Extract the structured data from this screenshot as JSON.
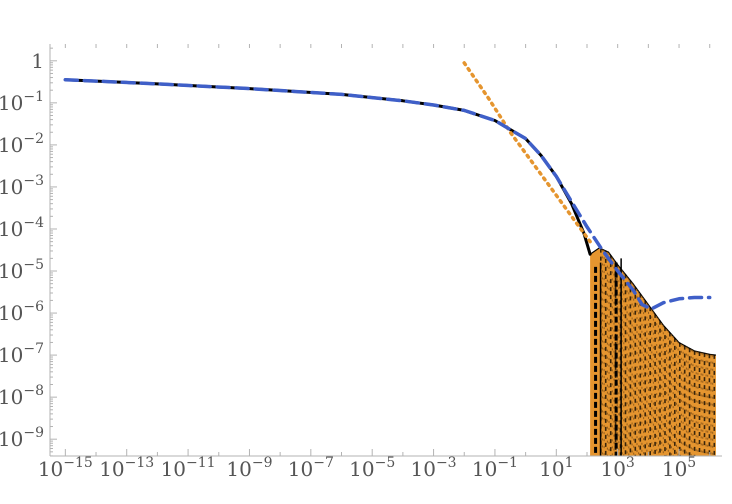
{
  "chart_data": {
    "type": "line",
    "title": "",
    "xlabel": "",
    "ylabel": "",
    "x_scale": "log",
    "y_scale": "log",
    "xlim_log10": [
      -15.5,
      6.4
    ],
    "ylim_log10": [
      -9.4,
      0.4
    ],
    "grid": false,
    "legend": "none",
    "x_ticks": [
      {
        "label": "10",
        "exp": "−15",
        "log10": -15
      },
      {
        "label": "10",
        "exp": "−13",
        "log10": -13
      },
      {
        "label": "10",
        "exp": "−11",
        "log10": -11
      },
      {
        "label": "10",
        "exp": "−9",
        "log10": -9
      },
      {
        "label": "10",
        "exp": "−7",
        "log10": -7
      },
      {
        "label": "10",
        "exp": "−5",
        "log10": -5
      },
      {
        "label": "10",
        "exp": "−3",
        "log10": -3
      },
      {
        "label": "10",
        "exp": "−1",
        "log10": -1
      },
      {
        "label": "10",
        "exp": "1",
        "log10": 1
      },
      {
        "label": "10",
        "exp": "3",
        "log10": 3
      },
      {
        "label": "10",
        "exp": "5",
        "log10": 5
      }
    ],
    "y_ticks": [
      {
        "label": "1",
        "exp": "",
        "log10": 0
      },
      {
        "label": "10",
        "exp": "−1",
        "log10": -1
      },
      {
        "label": "10",
        "exp": "−2",
        "log10": -2
      },
      {
        "label": "10",
        "exp": "−3",
        "log10": -3
      },
      {
        "label": "10",
        "exp": "−4",
        "log10": -4
      },
      {
        "label": "10",
        "exp": "−5",
        "log10": -5
      },
      {
        "label": "10",
        "exp": "−6",
        "log10": -6
      },
      {
        "label": "10",
        "exp": "−7",
        "log10": -7
      },
      {
        "label": "10",
        "exp": "−8",
        "log10": -8
      },
      {
        "label": "10",
        "exp": "−9",
        "log10": -9
      }
    ],
    "series": [
      {
        "style": "solid",
        "color": "#000000",
        "points_log10": [
          [
            -15,
            -0.45
          ],
          [
            -12,
            -0.55
          ],
          [
            -9,
            -0.66
          ],
          [
            -6,
            -0.8
          ],
          [
            -4,
            -0.95
          ],
          [
            -3,
            -1.05
          ],
          [
            -2,
            -1.18
          ],
          [
            -1,
            -1.42
          ],
          [
            0,
            -1.85
          ],
          [
            0.5,
            -2.25
          ],
          [
            1,
            -2.75
          ],
          [
            1.5,
            -3.4
          ],
          [
            1.9,
            -4.1
          ],
          [
            2.1,
            -4.6
          ]
        ]
      },
      {
        "style": "dashed",
        "color": "#3f5fc8",
        "points_log10": [
          [
            -15,
            -0.45
          ],
          [
            -12,
            -0.55
          ],
          [
            -9,
            -0.66
          ],
          [
            -6,
            -0.8
          ],
          [
            -4,
            -0.95
          ],
          [
            -3,
            -1.05
          ],
          [
            -2,
            -1.18
          ],
          [
            -1,
            -1.42
          ],
          [
            0,
            -1.85
          ],
          [
            0.5,
            -2.25
          ],
          [
            1,
            -2.75
          ],
          [
            1.5,
            -3.35
          ],
          [
            2,
            -3.95
          ],
          [
            2.5,
            -4.5
          ],
          [
            3,
            -5.0
          ],
          [
            3.5,
            -5.45
          ],
          [
            3.8,
            -5.8
          ],
          [
            4.1,
            -5.9
          ],
          [
            4.5,
            -5.75
          ],
          [
            5,
            -5.66
          ],
          [
            5.5,
            -5.63
          ],
          [
            6,
            -5.63
          ]
        ]
      },
      {
        "style": "dotted",
        "color": "#e5952f",
        "points_log10": [
          [
            -2,
            -0.05
          ],
          [
            -1.2,
            -0.9
          ],
          [
            -0.5,
            -1.7
          ],
          [
            0.2,
            -2.4
          ],
          [
            0.8,
            -3.0
          ],
          [
            1.3,
            -3.5
          ],
          [
            1.8,
            -4.0
          ],
          [
            2.1,
            -4.3
          ]
        ]
      },
      {
        "style": "filled-oscillation",
        "color": "#e5952f",
        "envelope_log10": [
          [
            2.1,
            -4.6
          ],
          [
            2.4,
            -4.45
          ],
          [
            2.7,
            -4.55
          ],
          [
            3,
            -4.85
          ],
          [
            3.5,
            -5.3
          ],
          [
            4,
            -5.8
          ],
          [
            4.5,
            -6.3
          ],
          [
            5,
            -6.7
          ],
          [
            5.5,
            -6.9
          ],
          [
            6,
            -6.98
          ],
          [
            6.2,
            -7.0
          ]
        ],
        "floor_log10": -9.4
      }
    ]
  }
}
